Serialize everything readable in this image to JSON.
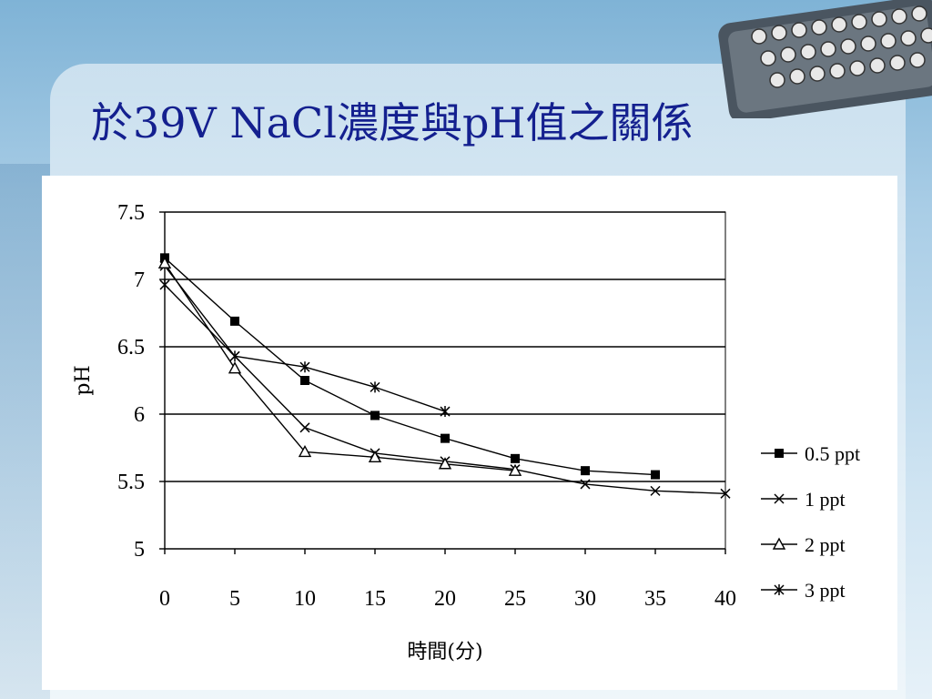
{
  "slide": {
    "title": "於39V NaCl濃度與pH值之關係"
  },
  "chart_data": {
    "type": "line",
    "title": "",
    "xlabel": "時間(分)",
    "ylabel": "pH",
    "xlim": [
      0,
      40
    ],
    "ylim": [
      5,
      7.5
    ],
    "x_ticks": [
      "0",
      "5",
      "10",
      "15",
      "20",
      "25",
      "30",
      "35",
      "40"
    ],
    "y_ticks": [
      "7.5",
      "7",
      "6.5",
      "6",
      "5.5",
      "5"
    ],
    "grid": "horizontal",
    "legend_position": "right",
    "series": [
      {
        "name": "0.5 ppt",
        "marker": "filled-square",
        "points": [
          [
            0,
            7.16
          ],
          [
            5,
            6.69
          ],
          [
            10,
            6.25
          ],
          [
            15,
            5.99
          ],
          [
            20,
            5.82
          ],
          [
            25,
            5.67
          ],
          [
            30,
            5.58
          ],
          [
            35,
            5.55
          ]
        ]
      },
      {
        "name": "1 ppt",
        "marker": "x",
        "points": [
          [
            0,
            7.1
          ],
          [
            5,
            6.43
          ],
          [
            10,
            5.9
          ],
          [
            15,
            5.71
          ],
          [
            20,
            5.65
          ],
          [
            25,
            5.59
          ],
          [
            30,
            5.48
          ],
          [
            35,
            5.43
          ],
          [
            40,
            5.41
          ]
        ]
      },
      {
        "name": "2 ppt",
        "marker": "triangle",
        "points": [
          [
            0,
            7.12
          ],
          [
            5,
            6.34
          ],
          [
            10,
            5.72
          ],
          [
            15,
            5.68
          ],
          [
            20,
            5.63
          ],
          [
            25,
            5.58
          ]
        ]
      },
      {
        "name": "3 ppt",
        "marker": "star",
        "points": [
          [
            0,
            6.96
          ],
          [
            5,
            6.43
          ],
          [
            10,
            6.35
          ],
          [
            15,
            6.2
          ],
          [
            20,
            6.02
          ]
        ]
      }
    ]
  }
}
